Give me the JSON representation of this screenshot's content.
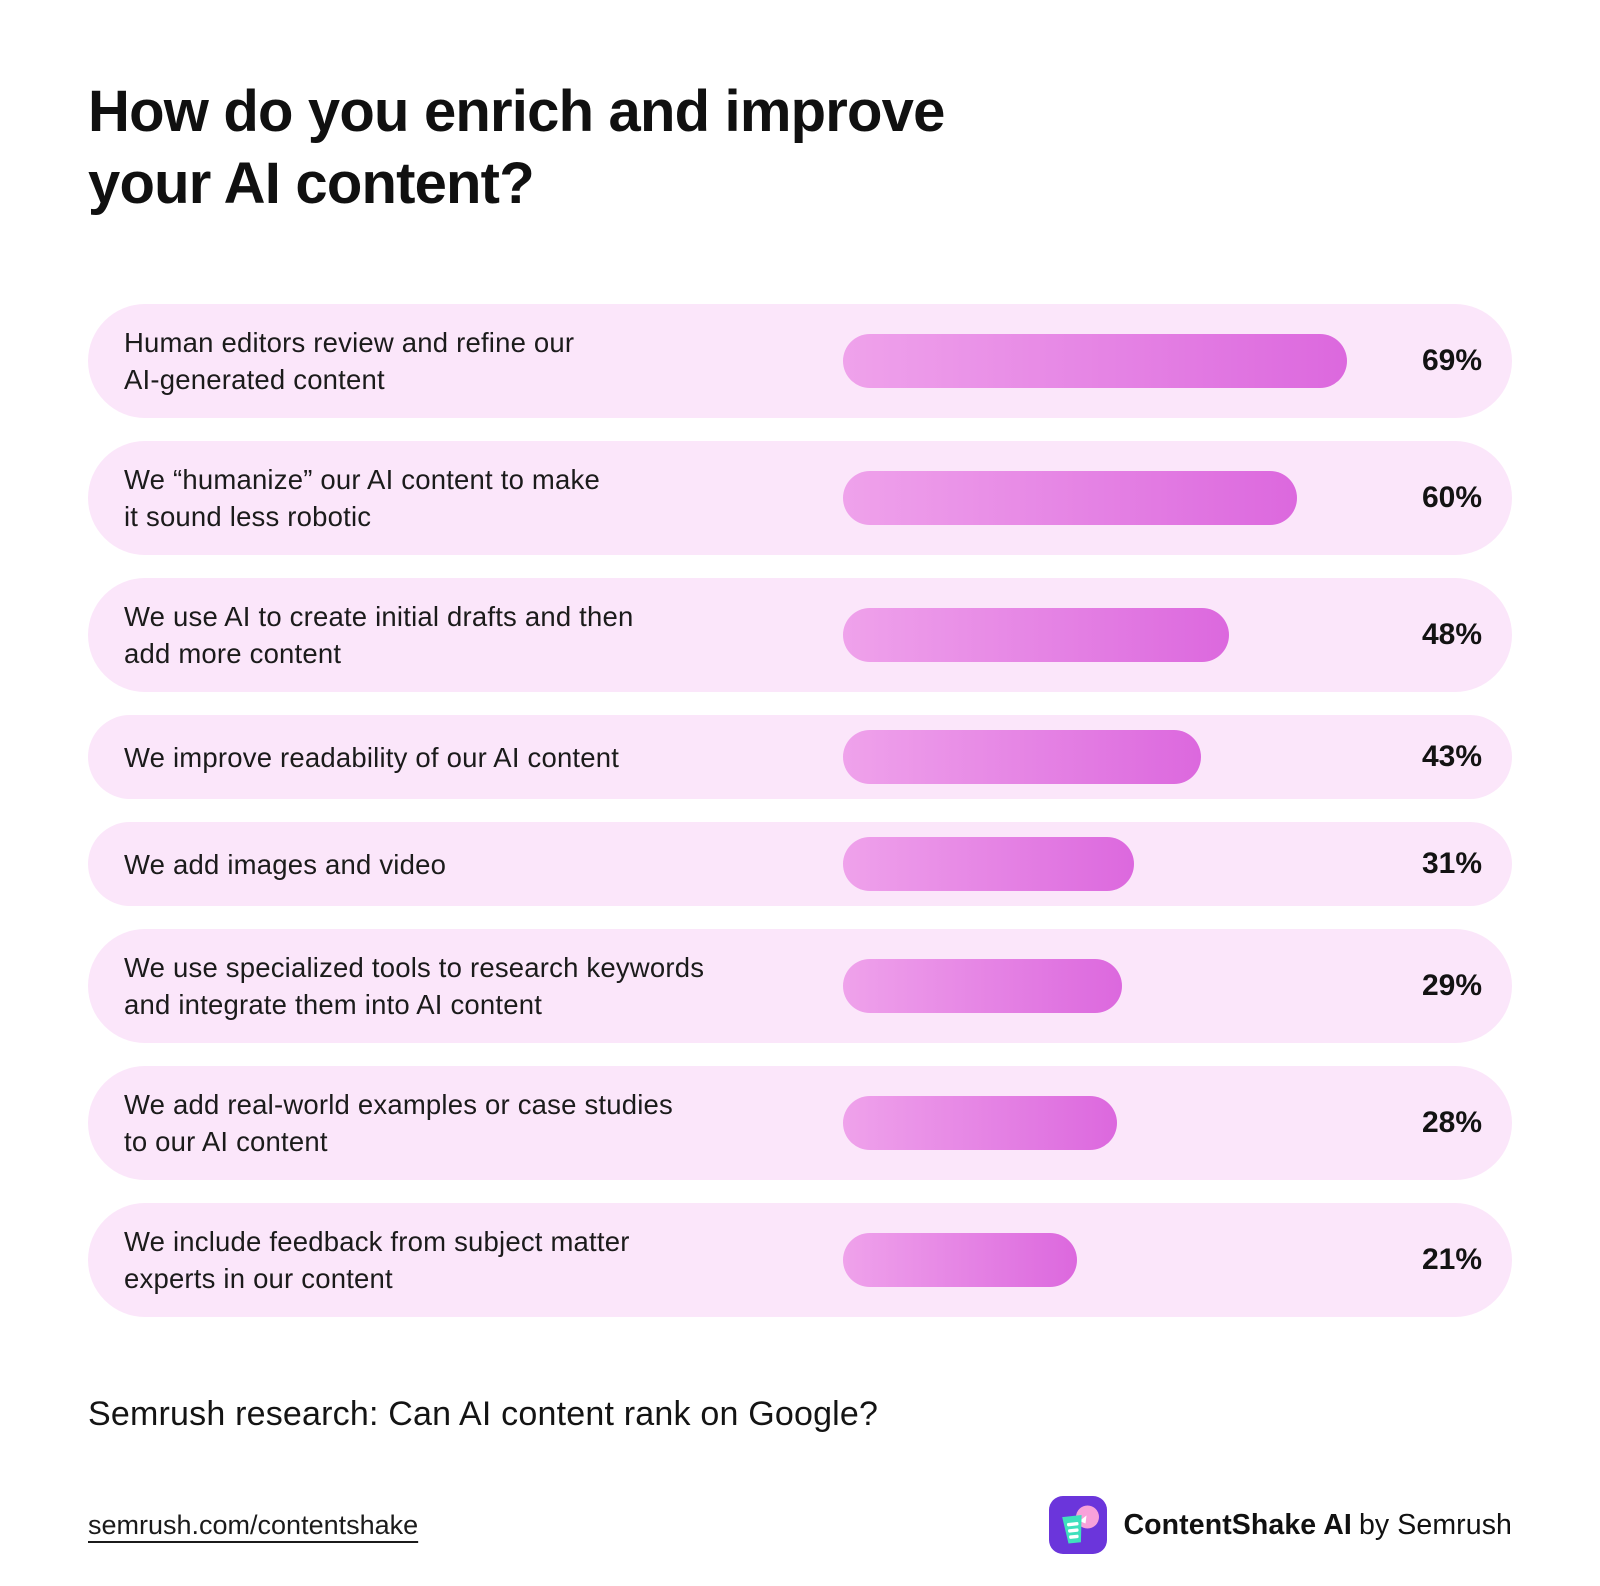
{
  "title": "How do you enrich and improve\nyour AI content?",
  "chart_data": {
    "type": "bar",
    "orientation": "horizontal",
    "title": "How do you enrich and improve your AI content?",
    "categories": [
      "Human editors review and refine our AI-generated content",
      "We “humanize” our AI content to make it sound less robotic",
      "We use AI to create initial drafts and then add more content",
      "We improve readability of our AI content",
      "We add images and video",
      "We use specialized tools to research keywords and integrate them into AI content",
      "We add real-world examples or case studies to our AI content",
      "We include feedback from subject matter experts in our content"
    ],
    "values": [
      69,
      60,
      48,
      43,
      31,
      29,
      28,
      21
    ],
    "value_labels": [
      "69%",
      "60%",
      "48%",
      "43%",
      "31%",
      "29%",
      "28%",
      "21%"
    ],
    "xlim": [
      0,
      100
    ],
    "grid": false,
    "legend": false,
    "bar_gradient": [
      "#EFA2EB",
      "#DC68DE"
    ],
    "row_background": "#FBE6FA",
    "source": "Semrush research: Can AI content rank on Google?"
  },
  "rows": [
    {
      "label": "Human editors review and refine our\nAI-generated content",
      "value": 69,
      "value_label": "69%"
    },
    {
      "label": "We “humanize” our AI content to make\nit sound less robotic",
      "value": 60,
      "value_label": "60%"
    },
    {
      "label": "We use AI to create initial drafts and then\nadd more content",
      "value": 48,
      "value_label": "48%"
    },
    {
      "label": "We improve readability of our AI content",
      "value": 43,
      "value_label": "43%"
    },
    {
      "label": "We add images and video",
      "value": 31,
      "value_label": "31%"
    },
    {
      "label": "We use specialized tools to research keywords\nand integrate them into AI content",
      "value": 29,
      "value_label": "29%"
    },
    {
      "label": "We add real-world examples or case studies\nto our AI content",
      "value": 28,
      "value_label": "28%"
    },
    {
      "label": "We include feedback from subject matter\nexperts in our content",
      "value": 21,
      "value_label": "21%"
    }
  ],
  "subtitle": "Semrush research: Can AI content rank on Google?",
  "footer": {
    "link": "semrush.com/contentshake",
    "brand_bold": "ContentShake AI",
    "brand_rest": "by Semrush",
    "logo_colors": {
      "background": "#6B35DB",
      "cup": "#3FE0BD",
      "circle": "#F8A1DA"
    }
  }
}
